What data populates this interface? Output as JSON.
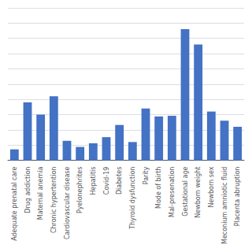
{
  "chart_data": {
    "type": "bar",
    "categories": [
      "Adequate prenatal care",
      "Drug addiction",
      "Maternal anemia",
      "Chronic hypertention",
      "Cardiovascular disease",
      "Pyelonephrites",
      "Hepatitis",
      "Covid-19",
      "Diabetes",
      "Thyroid dysfunction",
      "Parity",
      "Mode of birth",
      "Mal-presenation",
      "Gestational age",
      "Newborn weight",
      "Newborn sex",
      "Meconium amniotic fluid",
      "Placenta abruption"
    ],
    "values": [
      0.018,
      0.095,
      0.075,
      0.105,
      0.032,
      0.022,
      0.028,
      0.038,
      0.058,
      0.03,
      0.085,
      0.072,
      0.073,
      0.215,
      0.19,
      0.08,
      0.065,
      0.055
    ],
    "color": "#4472C4",
    "ylim": [
      0,
      0.25
    ],
    "yticks": [
      0,
      0.025,
      0.05,
      0.075,
      0.1,
      0.125,
      0.15,
      0.175,
      0.2,
      0.225,
      0.25
    ],
    "grid": true,
    "tick_labels": "x"
  }
}
